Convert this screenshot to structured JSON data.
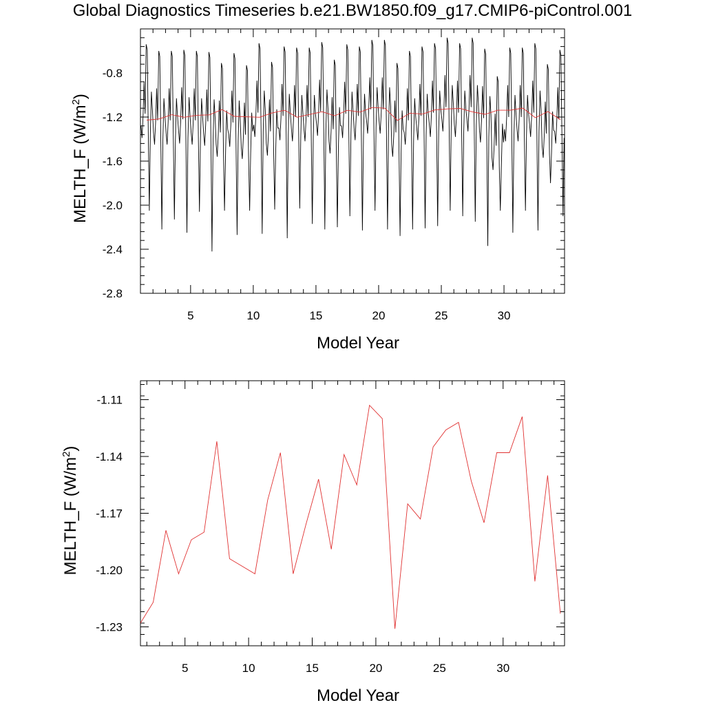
{
  "page": {
    "title": "Global Diagnostics Timeseries b.e21.BW1850.f09_g17.CMIP6-piControl.001"
  },
  "chart_data": [
    {
      "type": "line",
      "xlabel": "Model Year",
      "ylabel": "MELTH_F (W/m",
      "ylabel_sup": "2",
      "ylabel_close": ")",
      "xlim": [
        1,
        34.83
      ],
      "ylim": [
        -2.8,
        -0.4
      ],
      "x_ticks": [
        5,
        10,
        15,
        20,
        25,
        30
      ],
      "x_tick_labels": [
        "5",
        "10",
        "15",
        "20",
        "25",
        "30"
      ],
      "y_ticks": [
        -2.8,
        -2.4,
        -2.0,
        -1.6,
        -1.2,
        -0.8
      ],
      "y_tick_labels": [
        "-2.8",
        "-2.4",
        "-2.0",
        "-1.6",
        "-1.2",
        "-0.8"
      ],
      "grid": false,
      "series": [
        {
          "color": "#000000",
          "monthly_cycle": [
            -1.37,
            -1.48,
            -1.28,
            -0.97,
            -1.26,
            -0.63,
            -0.68,
            -1.45,
            -2.02,
            -1.43,
            -1.06,
            -1.23
          ],
          "monthly_offsets": [
            0.09,
            0.03,
            0.03,
            0.04,
            0.03,
            0.02,
            -0.08,
            0.01,
            -0.1,
            0.1,
            -0.07,
            0.07,
            0.06,
            0.06,
            0.11,
            -0.05,
            0.09,
            0.07,
            0.13,
            0.13,
            -0.08,
            0.03,
            0.07,
            0.1,
            0.15,
            0.1,
            0.15,
            0.05,
            -0.2,
            0.06,
            0.06,
            0.1,
            -0.09,
            0.04
          ],
          "trough_values": [
            -2.05,
            -2.22,
            -2.13,
            -2.25,
            -2.06,
            -2.42,
            -2.05,
            -2.27,
            -2.05,
            -2.26,
            -2.04,
            -2.3,
            -2.03,
            -2.17,
            -2.22,
            -2.2,
            -2.1,
            -2.23,
            -2.05,
            -2.22,
            -2.28,
            -2.22,
            -2.21,
            -2.19,
            -2.05,
            -2.1,
            -2.15,
            -2.37,
            -2.05,
            -2.25,
            -2.05,
            -2.23,
            -1.8,
            -2.1
          ]
        },
        {
          "color": "#e03030",
          "x": [
            1.5,
            2.5,
            3.5,
            4.5,
            5.5,
            6.5,
            7.5,
            8.5,
            10.5,
            11.5,
            12.5,
            13.5,
            14.5,
            15.5,
            16.5,
            17.5,
            18.5,
            19.5,
            20.5,
            21.5,
            22.5,
            23.5,
            24.5,
            25.5,
            26.5,
            27.5,
            28.5,
            29.5,
            30.5,
            31.5,
            32.5,
            33.5,
            34.5
          ],
          "y": [
            -1.228,
            -1.217,
            -1.179,
            -1.202,
            -1.184,
            -1.18,
            -1.132,
            -1.194,
            -1.202,
            -1.163,
            -1.138,
            -1.202,
            -1.176,
            -1.152,
            -1.189,
            -1.139,
            -1.155,
            -1.113,
            -1.12,
            -1.231,
            -1.165,
            -1.173,
            -1.135,
            -1.126,
            -1.122,
            -1.153,
            -1.175,
            -1.138,
            -1.138,
            -1.119,
            -1.206,
            -1.15,
            -1.223
          ]
        }
      ]
    },
    {
      "type": "line",
      "xlabel": "Model Year",
      "ylabel": "MELTH_F (W/m",
      "ylabel_sup": "2",
      "ylabel_close": ")",
      "xlim": [
        1.5,
        34.83
      ],
      "ylim": [
        -1.24,
        -1.1
      ],
      "x_ticks": [
        5,
        10,
        15,
        20,
        25,
        30
      ],
      "x_tick_labels": [
        "5",
        "10",
        "15",
        "20",
        "25",
        "30"
      ],
      "y_ticks": [
        -1.23,
        -1.2,
        -1.17,
        -1.14,
        -1.11
      ],
      "y_tick_labels": [
        "-1.23",
        "-1.20",
        "-1.17",
        "-1.14",
        "-1.11"
      ],
      "grid": false,
      "series": [
        {
          "color": "#e03030",
          "x": [
            1.5,
            2.5,
            3.5,
            4.5,
            5.5,
            6.5,
            7.5,
            8.5,
            10.5,
            11.5,
            12.5,
            13.5,
            14.5,
            15.5,
            16.5,
            17.5,
            18.5,
            19.5,
            20.5,
            21.5,
            22.5,
            23.5,
            24.5,
            25.5,
            26.5,
            27.5,
            28.5,
            29.5,
            30.5,
            31.5,
            32.5,
            33.5,
            34.5
          ],
          "y": [
            -1.228,
            -1.217,
            -1.179,
            -1.202,
            -1.184,
            -1.18,
            -1.132,
            -1.194,
            -1.202,
            -1.163,
            -1.138,
            -1.202,
            -1.176,
            -1.152,
            -1.189,
            -1.139,
            -1.155,
            -1.113,
            -1.12,
            -1.231,
            -1.165,
            -1.173,
            -1.135,
            -1.126,
            -1.122,
            -1.153,
            -1.175,
            -1.138,
            -1.138,
            -1.119,
            -1.206,
            -1.15,
            -1.223
          ]
        }
      ]
    }
  ]
}
